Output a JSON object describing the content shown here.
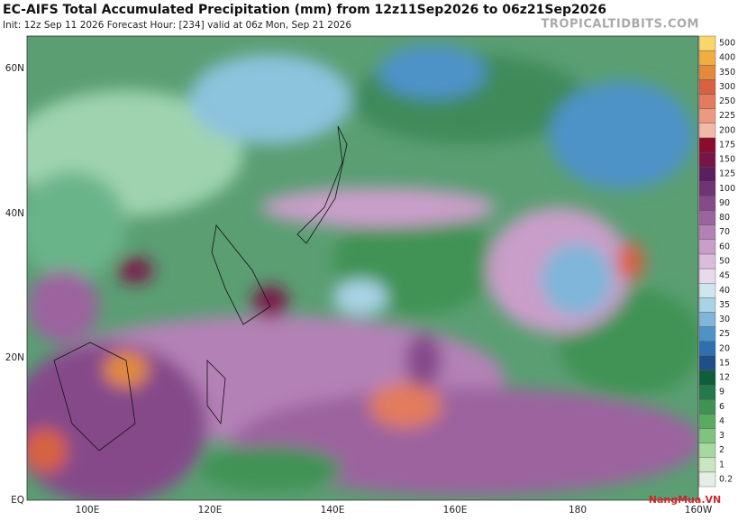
{
  "header": {
    "title": "EC-AIFS Total Accumulated Precipitation (mm) from 12z11Sep2026 to 06z21Sep2026",
    "subtitle": "Init: 12z Sep 11 2026   Forecast Hour: [234]   valid at 06z Mon, Sep 21 2026",
    "watermark": "TROPICALTIDBITS.COM"
  },
  "map": {
    "lat_labels": [
      "60N",
      "40N",
      "20N",
      "EQ"
    ],
    "lon_labels": [
      "100E",
      "120E",
      "140E",
      "160E",
      "180",
      "160W"
    ]
  },
  "colorbar": {
    "levels": [
      0.2,
      1,
      2,
      3,
      4,
      6,
      9,
      12,
      15,
      20,
      25,
      30,
      35,
      40,
      45,
      50,
      60,
      70,
      80,
      90,
      100,
      125,
      150,
      175,
      200,
      225,
      250,
      300,
      350,
      400,
      500
    ],
    "colors": [
      "#e6ece6",
      "#c8e6c0",
      "#a6d9a0",
      "#7ec47f",
      "#5aab62",
      "#3f9354",
      "#24784a",
      "#0f5e3a",
      "#1f4f86",
      "#2f6fb0",
      "#4d93c8",
      "#7fb6d9",
      "#a9d3e6",
      "#cfe6ef",
      "#ead9ea",
      "#dcbcdc",
      "#c99ec9",
      "#b481b6",
      "#9c649f",
      "#854a8a",
      "#6f3474",
      "#5a1f5e",
      "#7a1448",
      "#8c0c2e",
      "#f2b8a8",
      "#eb9a80",
      "#e27c5c",
      "#d86240",
      "#e48a3a",
      "#f0ae42",
      "#f8d66a"
    ]
  },
  "logo": "NangMua.VN"
}
